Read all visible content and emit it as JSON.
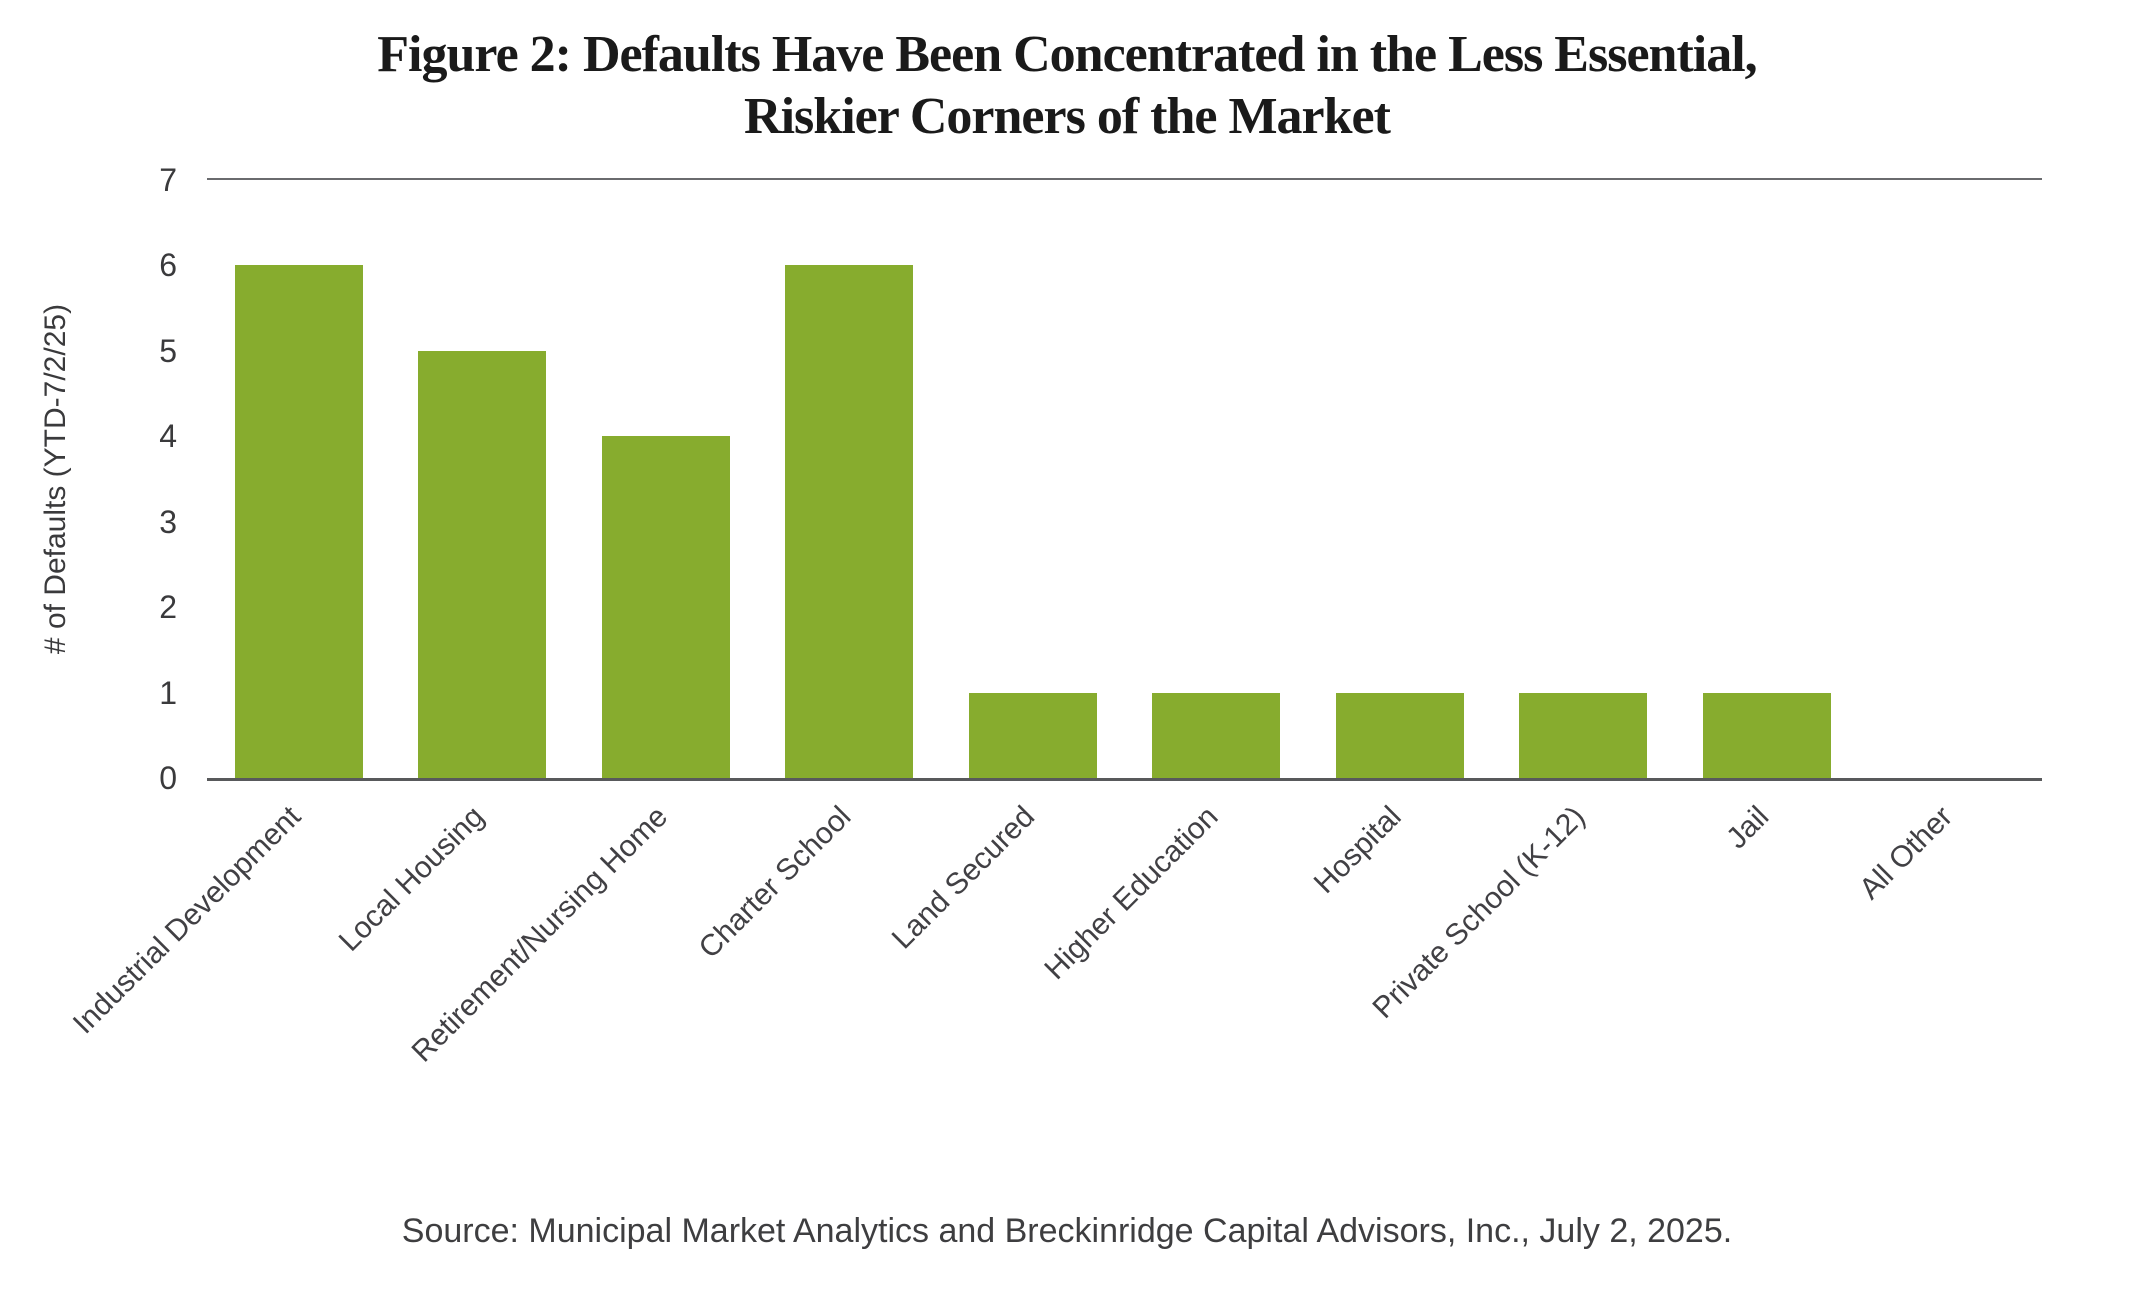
{
  "title": {
    "line1": "Figure 2: Defaults Have Been Concentrated in the Less Essential,",
    "line2": "Riskier Corners of the Market"
  },
  "source_note": "Source: Municipal Market Analytics and Breckinridge Capital Advisors, Inc., July 2, 2025.",
  "chart_data": {
    "type": "bar",
    "title": "Figure 2: Defaults Have Been Concentrated in the Less Essential, Riskier Corners of the Market",
    "xlabel": "",
    "ylabel": "# of Defaults (YTD-7/2/25)",
    "categories": [
      "Industrial Development",
      "Local Housing",
      "Retirement/Nursing Home",
      "Charter School",
      "Land Secured",
      "Higher Education",
      "Hospital",
      "Private School (K-12)",
      "Jail",
      "All Other"
    ],
    "values": [
      6,
      5,
      4,
      6,
      1,
      1,
      1,
      1,
      1,
      0
    ],
    "ylim": [
      0,
      7
    ],
    "y_ticks": [
      0,
      1,
      2,
      3,
      4,
      5,
      6,
      7
    ],
    "x_tick_rotation_deg": 45,
    "grid": "top gridline at y=7 and baseline at y=0 only",
    "legend_position": "none",
    "bar_color": "#87AC2E",
    "axis_color": "#58595B",
    "tick_text_color": "#3A3A3C"
  }
}
